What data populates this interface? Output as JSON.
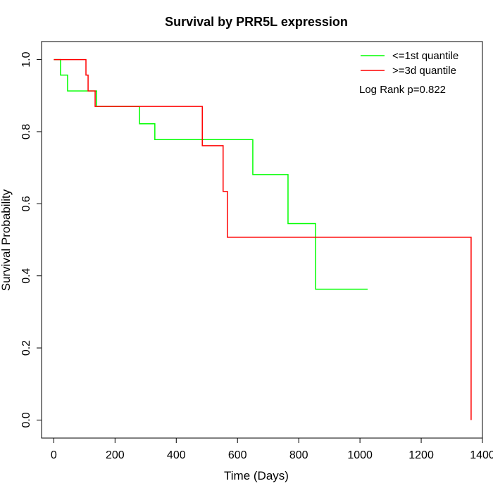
{
  "chart_data": {
    "type": "line",
    "title": "Survival by PRR5L expression",
    "xlabel": "Time (Days)",
    "ylabel": "Survival Probability",
    "xlim": [
      -40,
      1400
    ],
    "ylim": [
      -0.05,
      1.05
    ],
    "xticks": [
      0,
      200,
      400,
      600,
      800,
      1000,
      1200,
      1400
    ],
    "yticks": [
      0.0,
      0.2,
      0.4,
      0.6,
      0.8,
      1.0
    ],
    "xtick_labels": [
      "0",
      "200",
      "400",
      "600",
      "800",
      "1000",
      "1200",
      "1400"
    ],
    "ytick_labels": [
      "0.0",
      "0.2",
      "0.4",
      "0.6",
      "0.8",
      "1.0"
    ],
    "grid": false,
    "legend_position": "top-right",
    "annotation": "Log Rank p=0.822",
    "series": [
      {
        "name": "<=1st quantile",
        "color": "#00ff00",
        "steps": [
          {
            "x": 0,
            "y": 1.0
          },
          {
            "x": 22,
            "y": 0.957
          },
          {
            "x": 45,
            "y": 0.913
          },
          {
            "x": 140,
            "y": 0.87
          },
          {
            "x": 280,
            "y": 0.822
          },
          {
            "x": 330,
            "y": 0.778
          },
          {
            "x": 650,
            "y": 0.681
          },
          {
            "x": 765,
            "y": 0.545
          },
          {
            "x": 855,
            "y": 0.363
          }
        ],
        "end_x": 1025
      },
      {
        "name": ">=3d quantile",
        "color": "#ff0000",
        "steps": [
          {
            "x": 0,
            "y": 1.0
          },
          {
            "x": 105,
            "y": 0.957
          },
          {
            "x": 112,
            "y": 0.913
          },
          {
            "x": 135,
            "y": 0.87
          },
          {
            "x": 485,
            "y": 0.761
          },
          {
            "x": 553,
            "y": 0.634
          },
          {
            "x": 567,
            "y": 0.507
          },
          {
            "x": 1363,
            "y": 0.0
          }
        ],
        "end_x": 1363
      }
    ]
  }
}
